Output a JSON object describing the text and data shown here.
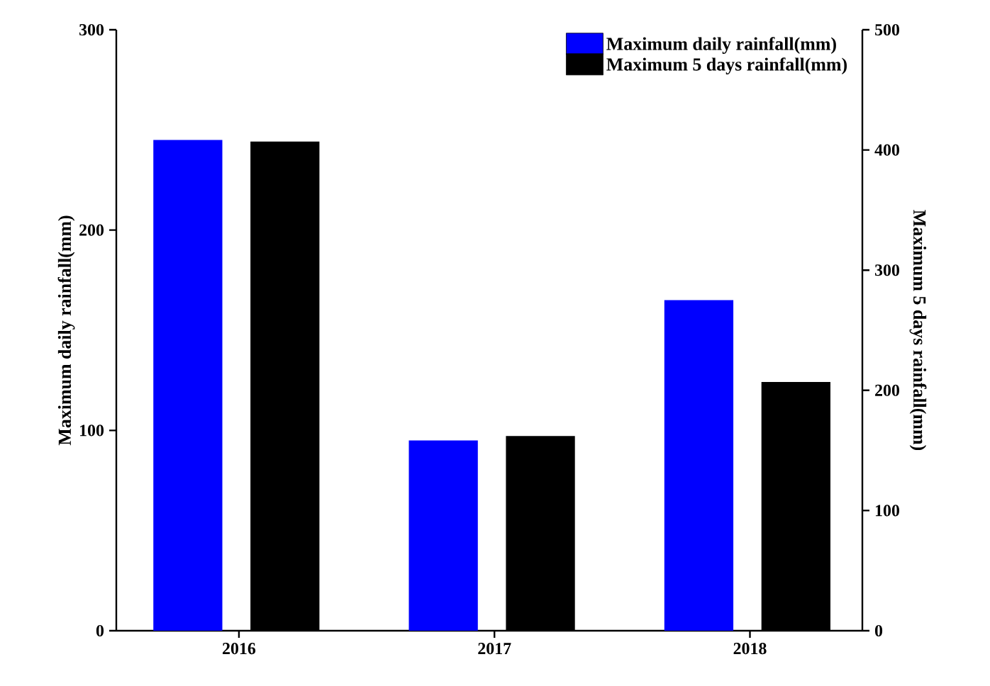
{
  "chart_data": {
    "type": "bar",
    "categories": [
      "2016",
      "2017",
      "2018"
    ],
    "ylabel": "Maximum daily rainfall(mm)",
    "y2label": "Maximum 5 days rainfall(mm)",
    "series": [
      {
        "name": "Maximum daily rainfall(mm)",
        "color": "#0000ff",
        "values": [
          245,
          95,
          165
        ]
      },
      {
        "name": "Maximum 5 days rainfall(mm)",
        "color": "#000000",
        "values": [
          407,
          162,
          207
        ],
        "axis": "y2"
      }
    ],
    "ylim": [
      0,
      300
    ],
    "yticks": [
      0,
      100,
      200,
      300
    ],
    "y2lim": [
      0,
      500
    ],
    "y2ticks": [
      0,
      100,
      200,
      300,
      400,
      500
    ],
    "legend": "top right",
    "grid": false
  }
}
